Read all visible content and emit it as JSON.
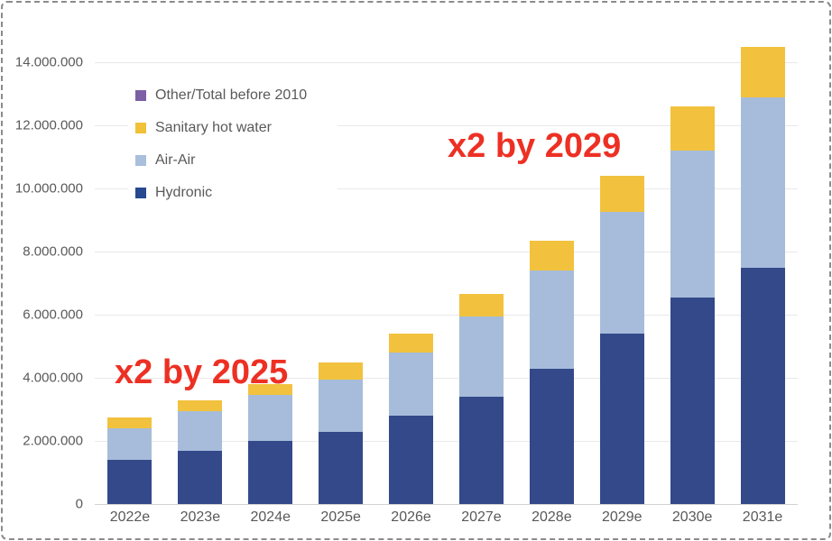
{
  "frame": {
    "background": "#ffffff",
    "border_color": "#8b8b8b",
    "border_style": "dashed"
  },
  "axis": {
    "text_color": "#595959",
    "gridline_color": "#e9e9e9"
  },
  "legend": {
    "items": [
      {
        "label": "Other/Total before 2010",
        "color": "#7d5fa6"
      },
      {
        "label": "Sanitary hot water",
        "color": "#f0c239"
      },
      {
        "label": "Air-Air",
        "color": "#a9bfdc"
      },
      {
        "label": "Hydronic",
        "color": "#27498f"
      }
    ]
  },
  "annotations": {
    "a2025": {
      "text": "x2 by 2025",
      "color": "#ed3024"
    },
    "a2029": {
      "text": "x2 by 2029",
      "color": "#ed3024"
    }
  },
  "chart_data": {
    "type": "bar",
    "stacked": true,
    "title": "",
    "xlabel": "",
    "ylabel": "",
    "categories": [
      "2022e",
      "2023e",
      "2024e",
      "2025e",
      "2026e",
      "2027e",
      "2028e",
      "2029e",
      "2030e",
      "2031e"
    ],
    "series": [
      {
        "name": "Hydronic",
        "color": "#33498a",
        "values": [
          1400000,
          1700000,
          2000000,
          2300000,
          2800000,
          3400000,
          4300000,
          5400000,
          6550000,
          7500000
        ]
      },
      {
        "name": "Air-Air",
        "color": "#a6bcda",
        "values": [
          1000000,
          1250000,
          1450000,
          1650000,
          2000000,
          2550000,
          3100000,
          3850000,
          4650000,
          5400000
        ]
      },
      {
        "name": "Sanitary hot water",
        "color": "#f2c23e",
        "values": [
          350000,
          350000,
          350000,
          550000,
          600000,
          700000,
          950000,
          1150000,
          1400000,
          1600000
        ]
      },
      {
        "name": "Other/Total before 2010",
        "color": "#7d5fa6",
        "values": [
          0,
          0,
          0,
          0,
          0,
          0,
          0,
          0,
          0,
          0
        ]
      }
    ],
    "totals": [
      2750000,
      3300000,
      3800000,
      4500000,
      5400000,
      6650000,
      8350000,
      10400000,
      12600000,
      14500000
    ],
    "ylim": [
      0,
      14000000
    ],
    "y_tick_interval": 2000000,
    "y_tick_labels": [
      "0",
      "2.000.000",
      "4.000.000",
      "6.000.000",
      "8.000.000",
      "10.000.000",
      "12.000.000",
      "14.000.000"
    ],
    "grid": "horizontal",
    "legend_position": "upper-left-inside",
    "annotations": [
      {
        "text": "x2 by 2025",
        "color": "#ed3024",
        "near_category": "2025e"
      },
      {
        "text": "x2 by 2029",
        "color": "#ed3024",
        "near_category": "2029e"
      }
    ]
  }
}
